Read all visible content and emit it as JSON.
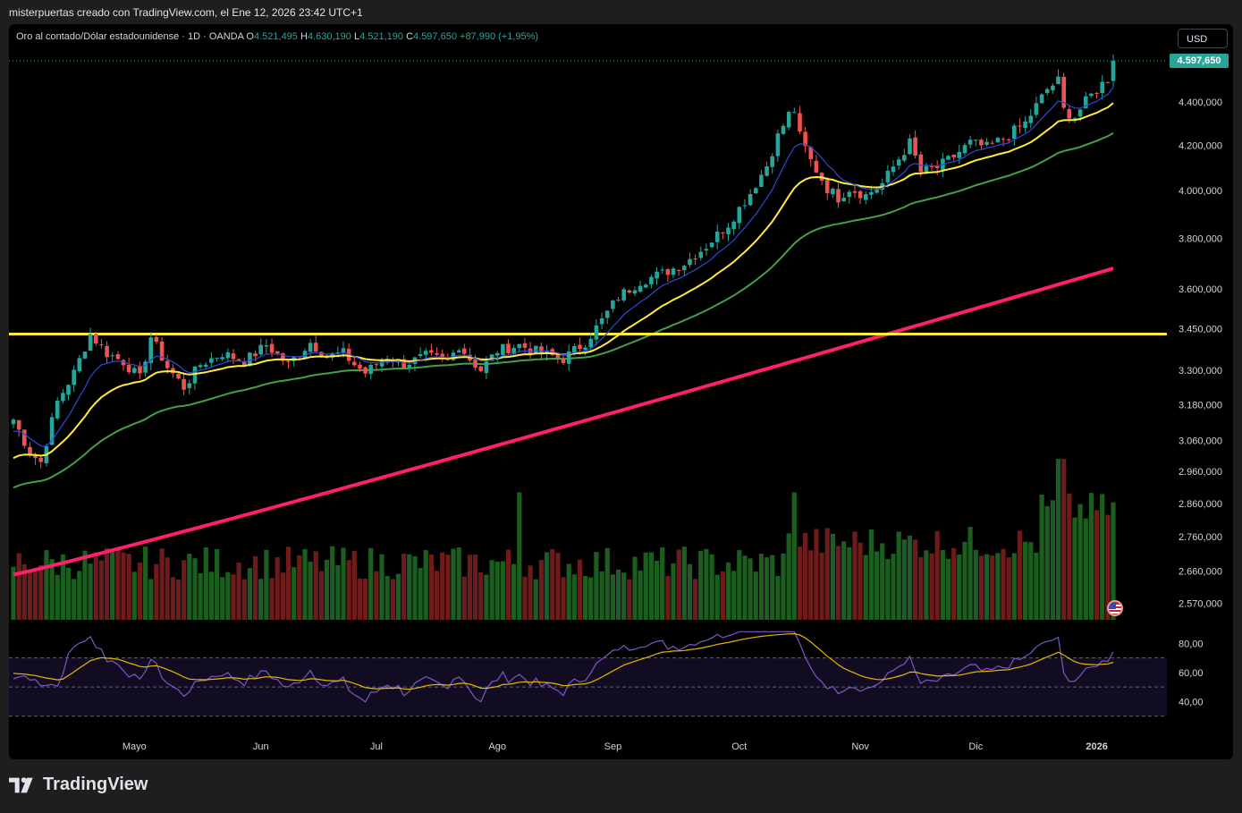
{
  "header": {
    "credit": "misterpuertas creado con TradingView.com, el Ene 12, 2026 23:42 UTC+1"
  },
  "legend": {
    "symbol": "Oro al contado/Dólar estadounidense · 1D · OANDA",
    "o_label": "O",
    "o_value": "4.521,495",
    "h_label": "H",
    "h_value": "4.630,190",
    "l_label": "L",
    "l_value": "4.521,190",
    "c_label": "C",
    "c_value": "4.597,650",
    "change": "+87,990 (+1,95%)"
  },
  "currency_button": "USD",
  "last_price_label": "4.597,650",
  "brand": {
    "name": "TradingView",
    "icon": "tradingview-logo-icon"
  },
  "flag_icon": "us-flag-icon",
  "colors": {
    "up": "#26a69a",
    "down": "#ef5350",
    "vol_up": "#1b5e20",
    "vol_down": "#6d1b1b",
    "ma_blue": "#2f4ad8",
    "ma_yellow": "#ffeb3b",
    "ma_green": "#43a047",
    "ma_pink": "#ff1f6a",
    "hline": "#ffeb3b",
    "rsi": "#7e57c2",
    "rsi_ma": "#e6b800",
    "axis_text": "#d1d4dc"
  },
  "chart_data": {
    "type": "candlestick",
    "title": "Oro al contado/Dólar estadounidense · 1D · OANDA",
    "y_ticks": [
      "4.400,000",
      "4.200,000",
      "4.000,000",
      "3.800,000",
      "3.600,000",
      "3.450,000",
      "3.300,000",
      "3.180,000",
      "3.060,000",
      "2.960,000",
      "2.860,000",
      "2.760,000",
      "2.660,000",
      "2.570,000"
    ],
    "y_tick_values": [
      4400,
      4200,
      4000,
      3800,
      3600,
      3450,
      3300,
      3180,
      3060,
      2960,
      2860,
      2760,
      2660,
      2570
    ],
    "y_scale": "log",
    "ylim": [
      2520,
      4700
    ],
    "x_ticks": [
      "Mayo",
      "Jun",
      "Jul",
      "Ago",
      "Sep",
      "Oct",
      "Nov",
      "Dic",
      "2026"
    ],
    "x_tick_bar_index": [
      22,
      45,
      66,
      88,
      109,
      132,
      154,
      175,
      197
    ],
    "horizontal_level": 3430,
    "last_price": 4597.65,
    "close_anchors": [
      [
        0,
        3130
      ],
      [
        3,
        3020
      ],
      [
        5,
        2990
      ],
      [
        8,
        3190
      ],
      [
        11,
        3290
      ],
      [
        14,
        3430
      ],
      [
        17,
        3360
      ],
      [
        20,
        3330
      ],
      [
        23,
        3270
      ],
      [
        25,
        3420
      ],
      [
        28,
        3310
      ],
      [
        31,
        3240
      ],
      [
        34,
        3320
      ],
      [
        38,
        3360
      ],
      [
        42,
        3330
      ],
      [
        46,
        3390
      ],
      [
        50,
        3320
      ],
      [
        54,
        3400
      ],
      [
        57,
        3350
      ],
      [
        60,
        3360
      ],
      [
        62,
        3320
      ],
      [
        64,
        3290
      ],
      [
        68,
        3350
      ],
      [
        71,
        3320
      ],
      [
        75,
        3350
      ],
      [
        79,
        3330
      ],
      [
        81,
        3390
      ],
      [
        83,
        3340
      ],
      [
        85,
        3300
      ],
      [
        88,
        3370
      ],
      [
        92,
        3390
      ],
      [
        96,
        3360
      ],
      [
        100,
        3340
      ],
      [
        104,
        3400
      ],
      [
        107,
        3480
      ],
      [
        110,
        3570
      ],
      [
        114,
        3630
      ],
      [
        118,
        3660
      ],
      [
        122,
        3700
      ],
      [
        126,
        3770
      ],
      [
        130,
        3860
      ],
      [
        134,
        3990
      ],
      [
        137,
        4110
      ],
      [
        139,
        4240
      ],
      [
        141,
        4340
      ],
      [
        142,
        4360
      ],
      [
        143,
        4240
      ],
      [
        145,
        4130
      ],
      [
        148,
        4010
      ],
      [
        150,
        3970
      ],
      [
        152,
        4010
      ],
      [
        155,
        3980
      ],
      [
        158,
        4030
      ],
      [
        161,
        4140
      ],
      [
        163,
        4210
      ],
      [
        165,
        4080
      ],
      [
        168,
        4100
      ],
      [
        171,
        4150
      ],
      [
        174,
        4210
      ],
      [
        177,
        4190
      ],
      [
        180,
        4230
      ],
      [
        184,
        4300
      ],
      [
        188,
        4460
      ],
      [
        190,
        4500
      ],
      [
        191,
        4360
      ],
      [
        193,
        4330
      ],
      [
        195,
        4400
      ],
      [
        197,
        4460
      ],
      [
        199,
        4510
      ],
      [
        200,
        4597.65
      ]
    ],
    "volume_scale": [
      0,
      100
    ],
    "rsi_ticks": [
      "80,00",
      "60,00",
      "40,00"
    ],
    "rsi_tick_values": [
      80,
      60,
      40
    ],
    "rsi_band": [
      30,
      70
    ],
    "rsi_ylim": [
      20,
      90
    ]
  }
}
